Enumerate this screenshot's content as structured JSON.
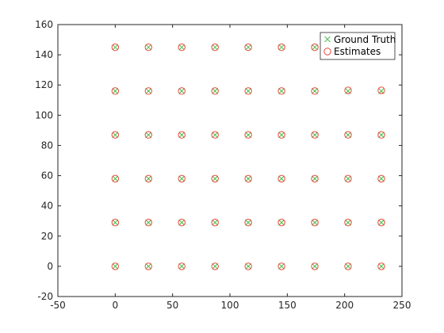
{
  "chart_data": {
    "type": "scatter",
    "xlim": [
      -50,
      250
    ],
    "ylim": [
      -20,
      160
    ],
    "xticks": [
      -50,
      0,
      50,
      100,
      150,
      200,
      250
    ],
    "yticks": [
      -20,
      0,
      20,
      40,
      60,
      80,
      100,
      120,
      140,
      160
    ],
    "grid": false,
    "box": true,
    "legend_position": "top-right",
    "series": [
      {
        "name": "Ground Truth",
        "marker": "x",
        "color": "#4dbd4d",
        "points": [
          [
            0,
            145
          ],
          [
            29,
            145
          ],
          [
            58,
            145
          ],
          [
            87,
            145
          ],
          [
            116,
            145
          ],
          [
            145,
            145
          ],
          [
            174,
            145
          ],
          [
            0,
            116
          ],
          [
            29,
            116
          ],
          [
            58,
            116
          ],
          [
            87,
            116
          ],
          [
            116,
            116
          ],
          [
            145,
            116
          ],
          [
            174,
            116
          ],
          [
            203,
            116
          ],
          [
            232,
            116
          ],
          [
            0,
            87
          ],
          [
            29,
            87
          ],
          [
            58,
            87
          ],
          [
            87,
            87
          ],
          [
            116,
            87
          ],
          [
            145,
            87
          ],
          [
            174,
            87
          ],
          [
            203,
            87
          ],
          [
            232,
            87
          ],
          [
            0,
            58
          ],
          [
            29,
            58
          ],
          [
            58,
            58
          ],
          [
            87,
            58
          ],
          [
            116,
            58
          ],
          [
            145,
            58
          ],
          [
            174,
            58
          ],
          [
            203,
            58
          ],
          [
            232,
            58
          ],
          [
            0,
            29
          ],
          [
            29,
            29
          ],
          [
            58,
            29
          ],
          [
            87,
            29
          ],
          [
            116,
            29
          ],
          [
            145,
            29
          ],
          [
            174,
            29
          ],
          [
            203,
            29
          ],
          [
            232,
            29
          ],
          [
            0,
            0
          ],
          [
            29,
            0
          ],
          [
            58,
            0
          ],
          [
            87,
            0
          ],
          [
            116,
            0
          ],
          [
            145,
            0
          ],
          [
            174,
            0
          ],
          [
            203,
            0
          ],
          [
            232,
            0
          ]
        ]
      },
      {
        "name": "Estimates",
        "marker": "circle",
        "color": "#e8493a",
        "points": [
          [
            0,
            145
          ],
          [
            29,
            145
          ],
          [
            58,
            145
          ],
          [
            87,
            145
          ],
          [
            116,
            145
          ],
          [
            145,
            145
          ],
          [
            174,
            145
          ],
          [
            0,
            116
          ],
          [
            29,
            116
          ],
          [
            58,
            116
          ],
          [
            87,
            116
          ],
          [
            116,
            116
          ],
          [
            145,
            116
          ],
          [
            174,
            116
          ],
          [
            203,
            116.5
          ],
          [
            232,
            116.5
          ],
          [
            0,
            87
          ],
          [
            29,
            87
          ],
          [
            58,
            87
          ],
          [
            87,
            87
          ],
          [
            116,
            87
          ],
          [
            145,
            87
          ],
          [
            174,
            87
          ],
          [
            203,
            87
          ],
          [
            232,
            87
          ],
          [
            0,
            58
          ],
          [
            29,
            58
          ],
          [
            58,
            58
          ],
          [
            87,
            58
          ],
          [
            116,
            58
          ],
          [
            145,
            58
          ],
          [
            174,
            58
          ],
          [
            203,
            58
          ],
          [
            232,
            58
          ],
          [
            0,
            29
          ],
          [
            29,
            29
          ],
          [
            58,
            29
          ],
          [
            87,
            29
          ],
          [
            116,
            29
          ],
          [
            145,
            29
          ],
          [
            174,
            29
          ],
          [
            203,
            29
          ],
          [
            232,
            29
          ],
          [
            0,
            0
          ],
          [
            29,
            0
          ],
          [
            58,
            0
          ],
          [
            87,
            0
          ],
          [
            116,
            0
          ],
          [
            145,
            0
          ],
          [
            174,
            0
          ],
          [
            203,
            0
          ],
          [
            232,
            0
          ]
        ]
      }
    ]
  }
}
